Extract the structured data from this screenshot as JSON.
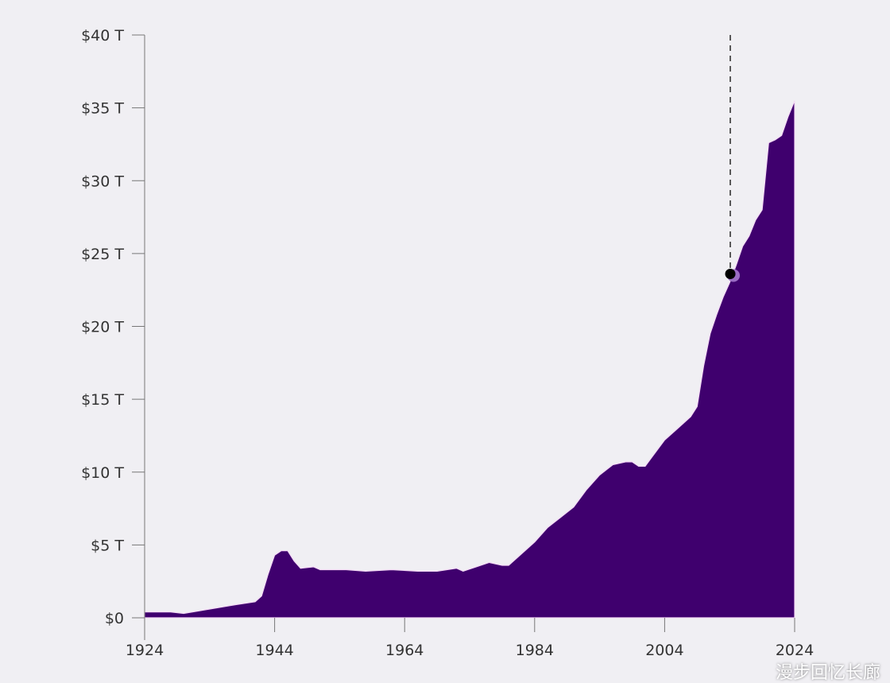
{
  "chart_data": {
    "type": "area",
    "title": "",
    "xlabel": "",
    "ylabel": "",
    "xlim": [
      1924,
      2024
    ],
    "ylim": [
      0,
      40
    ],
    "grid": false,
    "fill_color": "#3f006e",
    "x_ticks": [
      1924,
      1944,
      1964,
      1984,
      2004,
      2024
    ],
    "x_tick_labels": [
      "1924",
      "1944",
      "1964",
      "1984",
      "2004",
      "2024"
    ],
    "y_ticks": [
      0,
      5,
      10,
      15,
      20,
      25,
      30,
      35,
      40
    ],
    "y_tick_labels": [
      "$0",
      "$5 T",
      "$10 T",
      "$15 T",
      "$20 T",
      "$25 T",
      "$30 T",
      "$35 T",
      "$40 T"
    ],
    "series": [
      {
        "x": [
          1924,
          1928,
          1930,
          1934,
          1938,
          1941,
          1942,
          1943,
          1944,
          1945,
          1946,
          1947,
          1948,
          1950,
          1951,
          1955,
          1958,
          1962,
          1966,
          1969,
          1972,
          1973,
          1975,
          1977,
          1979,
          1980,
          1981,
          1982,
          1984,
          1986,
          1988,
          1990,
          1992,
          1994,
          1996,
          1998,
          1999,
          2000,
          2001,
          2002,
          2004,
          2006,
          2008,
          2009,
          2010,
          2011,
          2012,
          2013,
          2014,
          2015,
          2016,
          2017,
          2018,
          2019,
          2020,
          2021,
          2022,
          2023,
          2024
        ],
        "values": [
          0.4,
          0.4,
          0.3,
          0.6,
          0.9,
          1.1,
          1.5,
          3.0,
          4.3,
          4.6,
          4.6,
          3.9,
          3.4,
          3.5,
          3.3,
          3.3,
          3.2,
          3.3,
          3.2,
          3.2,
          3.4,
          3.2,
          3.5,
          3.8,
          3.6,
          3.6,
          4.0,
          4.4,
          5.2,
          6.2,
          6.9,
          7.6,
          8.8,
          9.8,
          10.5,
          10.7,
          10.7,
          10.4,
          10.4,
          11.0,
          12.2,
          13.0,
          13.8,
          14.5,
          17.3,
          19.5,
          20.8,
          22.0,
          23.0,
          24.2,
          25.5,
          26.2,
          27.3,
          28.0,
          32.6,
          32.8,
          33.1,
          34.4,
          35.5
        ]
      }
    ],
    "highlight": {
      "x": 2014.1,
      "y": 23.6,
      "marker_color": "#000000",
      "dashed_line": true
    }
  },
  "watermark": "漫步回忆长廊"
}
